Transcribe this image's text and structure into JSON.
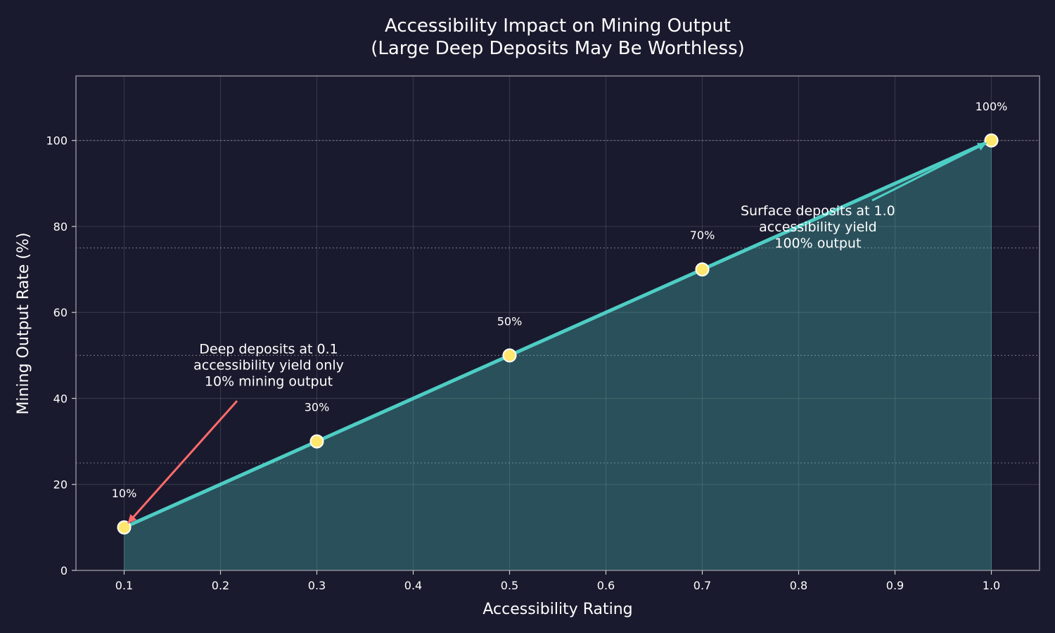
{
  "chart_data": {
    "type": "line",
    "title": "Accessibility Impact on Mining Output",
    "subtitle": "(Large Deep Deposits May Be Worthless)",
    "xlabel": "Accessibility Rating",
    "ylabel": "Mining Output Rate (%)",
    "xlim": [
      0.05,
      1.05
    ],
    "ylim": [
      0,
      115
    ],
    "xticks": [
      "0.1",
      "0.2",
      "0.3",
      "0.4",
      "0.5",
      "0.6",
      "0.7",
      "0.8",
      "0.9",
      "1.0"
    ],
    "yticks": [
      "0",
      "20",
      "40",
      "60",
      "80",
      "100"
    ],
    "grid": true,
    "reference_lines_y": [
      25,
      50,
      75,
      100
    ],
    "x": [
      0.1,
      0.3,
      0.5,
      0.7,
      1.0
    ],
    "values": [
      10,
      30,
      50,
      70,
      100
    ],
    "data_labels": [
      "10%",
      "30%",
      "50%",
      "70%",
      "100%"
    ],
    "fill_under": true,
    "annotations": [
      {
        "lines": [
          "Deep deposits at 0.1",
          "accessibility yield only",
          "10% mining output"
        ],
        "xy": [
          0.1,
          10
        ],
        "xytext": [
          0.25,
          40
        ],
        "color": "#ff6b6b"
      },
      {
        "lines": [
          "Surface deposits at 1.0",
          "accessibility yield",
          "100% output"
        ],
        "xy": [
          1.0,
          100
        ],
        "xytext": [
          0.82,
          80
        ],
        "color": "#4ecdc4"
      }
    ],
    "colors": {
      "background": "#1a1a2e",
      "line": "#4ecdc4",
      "marker": "#ffe66d",
      "fill": "#4ecdc4",
      "deep_arrow": "#ff6b6b"
    }
  }
}
